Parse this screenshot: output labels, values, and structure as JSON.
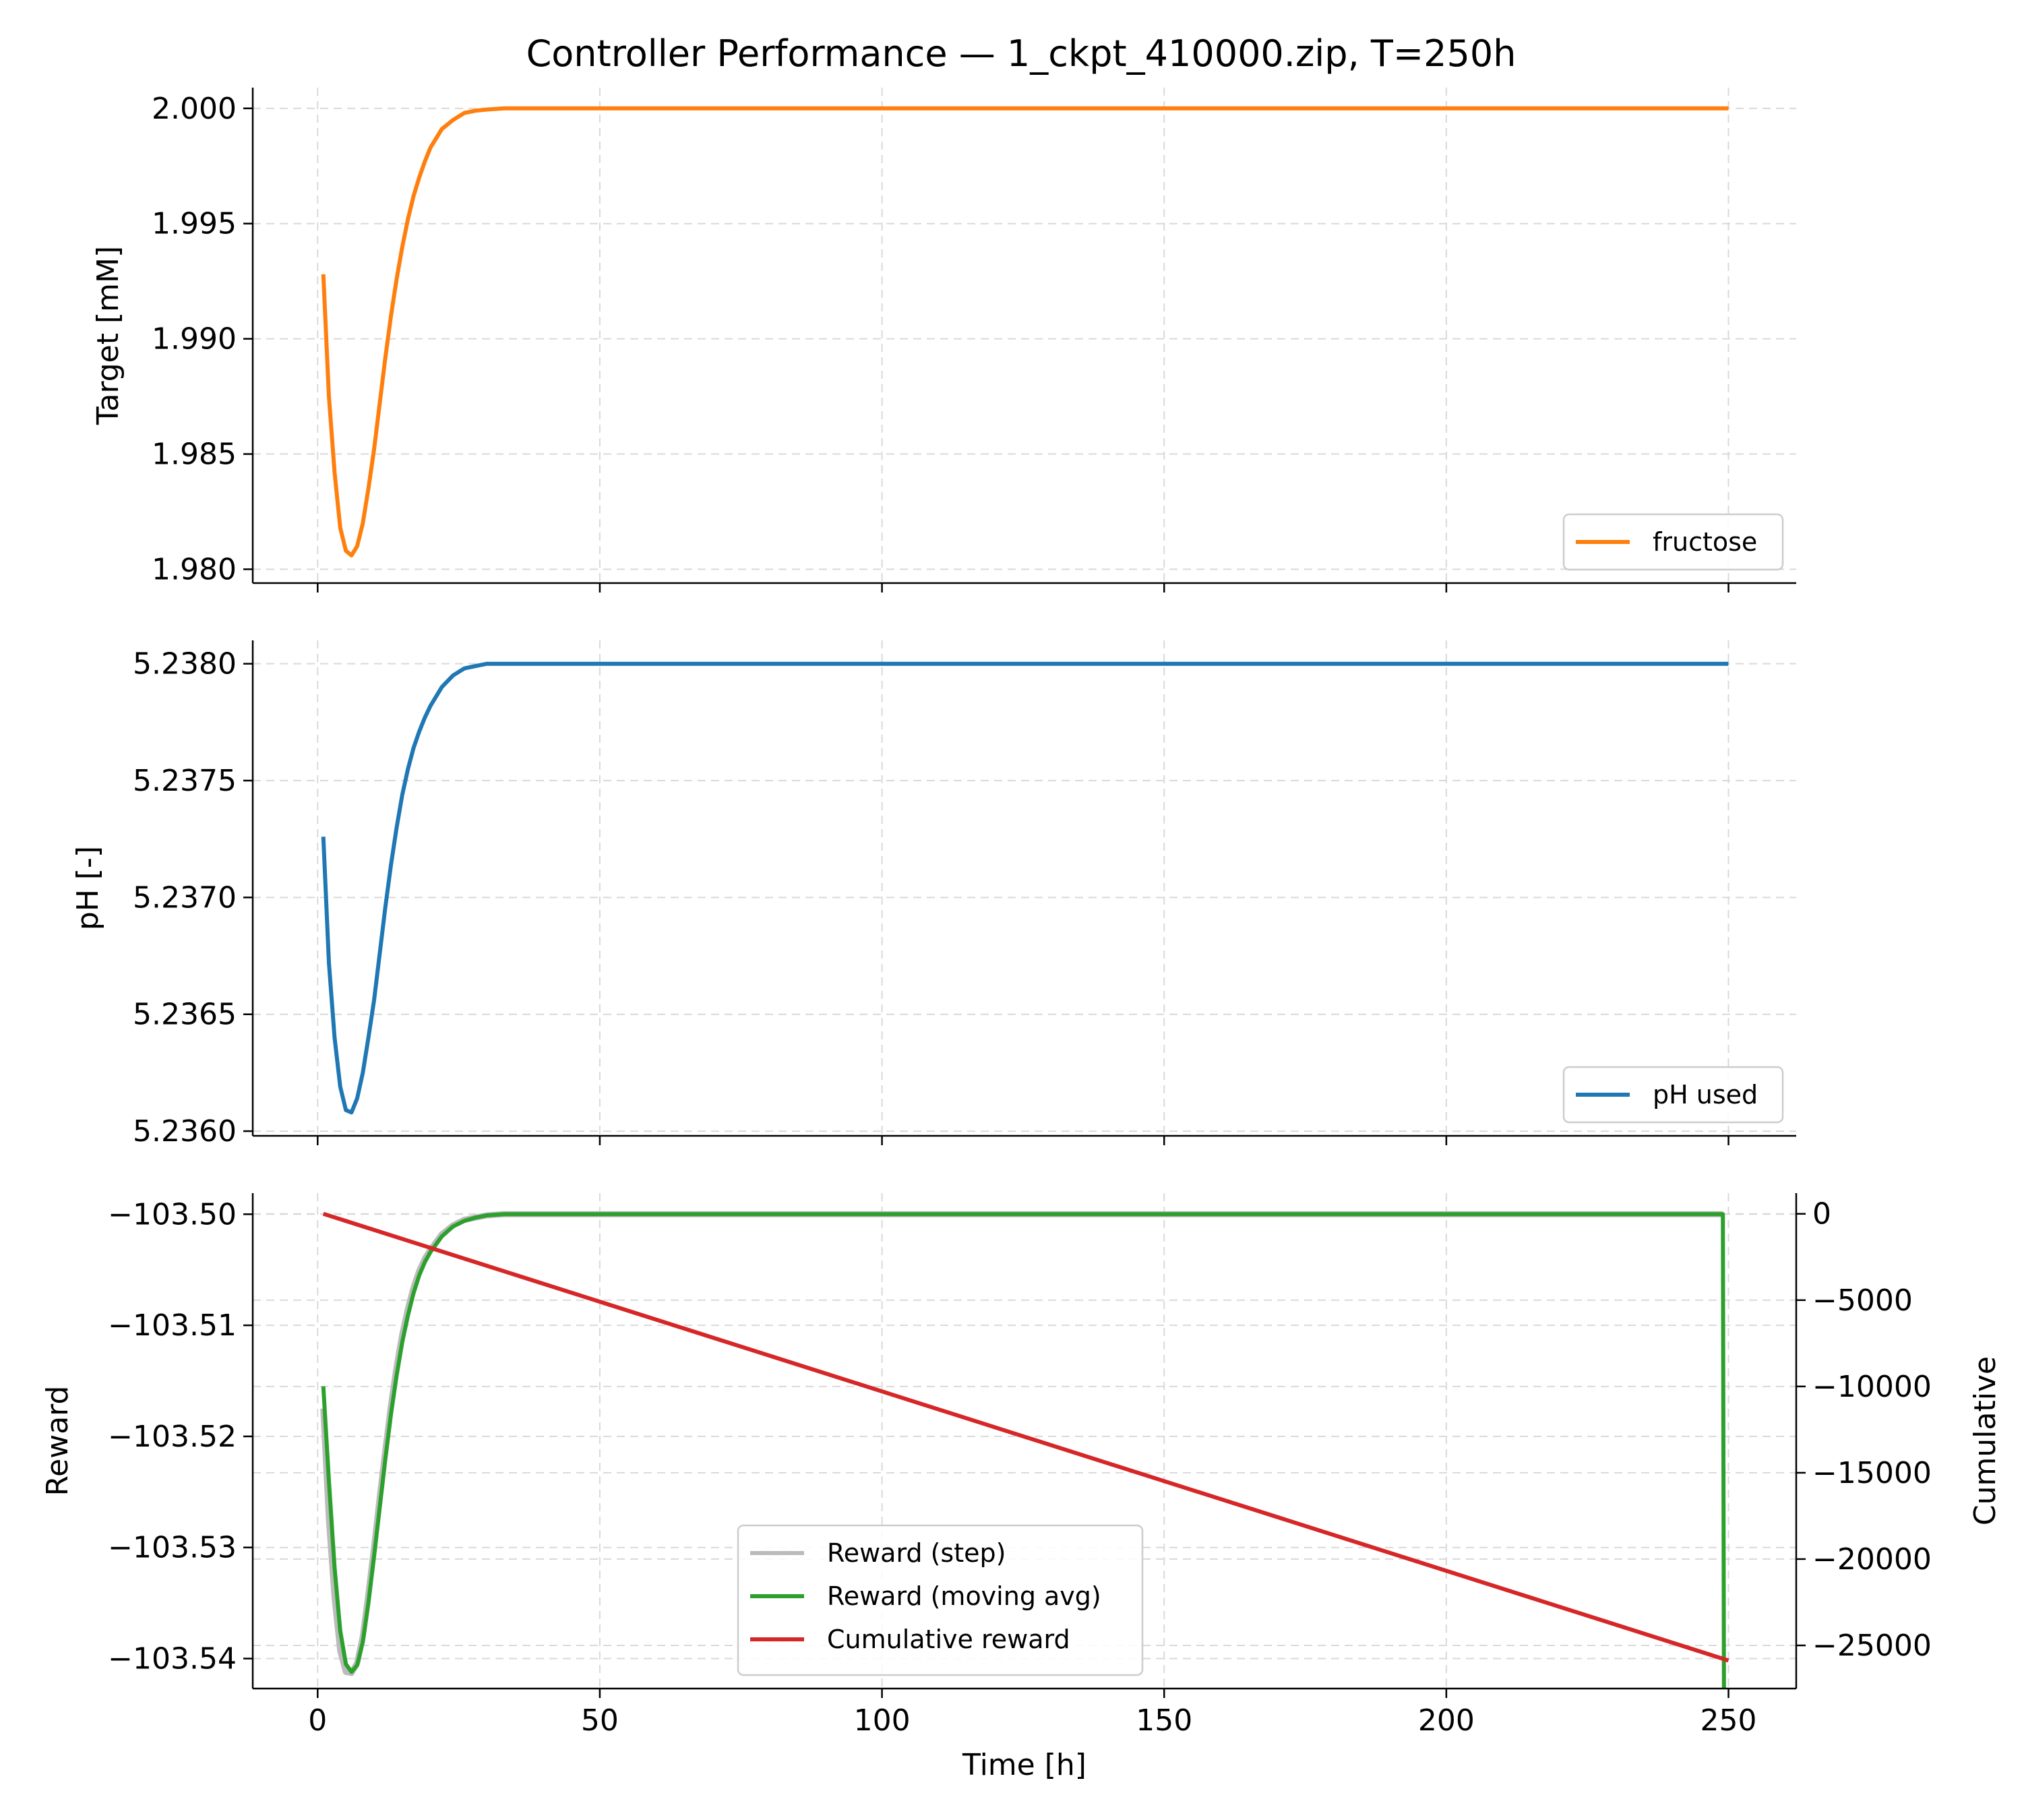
{
  "title": "Controller Performance — 1_ckpt_410000.zip, T=250h",
  "colors": {
    "fructose": "#ff7f0e",
    "ph": "#1f77b4",
    "reward_step": "#bbbbbb",
    "reward_ma": "#2ca02c",
    "cumulative": "#d62728"
  },
  "chart_data": [
    {
      "type": "line",
      "xlim": [
        -11.5,
        262
      ],
      "ylim": [
        1.9794,
        2.0009
      ],
      "xlabel": "",
      "ylabel": "Target [mM]",
      "xticks": [
        0,
        50,
        100,
        150,
        200,
        250
      ],
      "yticks": [
        1.98,
        1.985,
        1.99,
        1.995,
        2.0
      ],
      "ytick_labels": [
        "1.980",
        "1.985",
        "1.990",
        "1.995",
        "2.000"
      ],
      "grid": true,
      "legend_position": "lower right",
      "series": [
        {
          "name": "fructose",
          "x": [
            1,
            2,
            3,
            4,
            5,
            6,
            7,
            8,
            9,
            10,
            11,
            12,
            13,
            14,
            15,
            16,
            17,
            18,
            19,
            20,
            22,
            24,
            26,
            28,
            30,
            33,
            36,
            40,
            45,
            50,
            100,
            150,
            200,
            250
          ],
          "y": [
            1.9928,
            1.9875,
            1.9842,
            1.9818,
            1.9808,
            1.9806,
            1.981,
            1.982,
            1.9835,
            1.9852,
            1.9872,
            1.9892,
            1.991,
            1.9926,
            1.994,
            1.9952,
            1.9962,
            1.997,
            1.9977,
            1.9983,
            1.9991,
            1.9995,
            1.9998,
            1.9999,
            1.99995,
            2.0,
            2.0,
            2.0,
            2.0,
            2.0,
            2.0,
            2.0,
            2.0,
            2.0
          ]
        }
      ]
    },
    {
      "type": "line",
      "xlim": [
        -11.5,
        262
      ],
      "ylim": [
        5.23598,
        5.2381
      ],
      "xlabel": "",
      "ylabel": "pH [-]",
      "xticks": [
        0,
        50,
        100,
        150,
        200,
        250
      ],
      "yticks": [
        5.236,
        5.2365,
        5.237,
        5.2375,
        5.238
      ],
      "ytick_labels": [
        "5.2360",
        "5.2365",
        "5.2370",
        "5.2375",
        "5.2380"
      ],
      "grid": true,
      "legend_position": "lower right",
      "series": [
        {
          "name": "pH used",
          "x": [
            1,
            2,
            3,
            4,
            5,
            6,
            7,
            8,
            9,
            10,
            11,
            12,
            13,
            14,
            15,
            16,
            17,
            18,
            19,
            20,
            22,
            24,
            26,
            28,
            30,
            33,
            36,
            40,
            45,
            50,
            100,
            150,
            200,
            250
          ],
          "y": [
            5.23726,
            5.23672,
            5.2364,
            5.23619,
            5.23609,
            5.23608,
            5.23614,
            5.23625,
            5.2364,
            5.23656,
            5.23676,
            5.23696,
            5.23714,
            5.2373,
            5.23744,
            5.23755,
            5.23764,
            5.23771,
            5.23777,
            5.23782,
            5.2379,
            5.23795,
            5.23798,
            5.23799,
            5.238,
            5.238,
            5.238,
            5.238,
            5.238,
            5.238,
            5.238,
            5.238,
            5.238,
            5.238
          ]
        }
      ]
    },
    {
      "type": "line",
      "xlim": [
        -11.5,
        262
      ],
      "ylim": [
        -103.5427,
        -103.4981
      ],
      "y2lim": [
        -27500,
        1200
      ],
      "xlabel": "Time [h]",
      "ylabel": "Reward",
      "y2label": "Cumulative",
      "xticks": [
        0,
        50,
        100,
        150,
        200,
        250
      ],
      "yticks": [
        -103.54,
        -103.53,
        -103.52,
        -103.51,
        -103.5
      ],
      "ytick_labels": [
        "−103.54",
        "−103.53",
        "−103.52",
        "−103.51",
        "−103.50"
      ],
      "y2ticks": [
        0,
        -5000,
        -10000,
        -15000,
        -20000,
        -25000
      ],
      "y2tick_labels": [
        "0",
        "−5000",
        "−10000",
        "−15000",
        "−20000",
        "−25000"
      ],
      "grid": true,
      "legend_position": "lower center",
      "series": [
        {
          "name": "Reward (step)",
          "axis": "left",
          "x": [
            1,
            2,
            3,
            4,
            5,
            6,
            7,
            8,
            9,
            10,
            11,
            12,
            13,
            14,
            15,
            16,
            17,
            18,
            19,
            20,
            22,
            24,
            26,
            28,
            30,
            33,
            36,
            40,
            45,
            50,
            100,
            150,
            200,
            249
          ],
          "y": [
            -103.5175,
            -103.5275,
            -103.5345,
            -103.5393,
            -103.5412,
            -103.5413,
            -103.5404,
            -103.538,
            -103.5342,
            -103.53,
            -103.5255,
            -103.5212,
            -103.5172,
            -103.5137,
            -103.5108,
            -103.5085,
            -103.5066,
            -103.5051,
            -103.504,
            -103.5032,
            -103.5018,
            -103.501,
            -103.5005,
            -103.5003,
            -103.5001,
            -103.5,
            -103.5,
            -103.5,
            -103.5,
            -103.5,
            -103.5,
            -103.5,
            -103.5,
            -103.5
          ]
        },
        {
          "name": "Reward (moving avg)",
          "axis": "left",
          "x": [
            1,
            2,
            3,
            4,
            5,
            6,
            7,
            8,
            9,
            10,
            11,
            12,
            13,
            14,
            15,
            16,
            17,
            18,
            19,
            20,
            22,
            24,
            26,
            28,
            30,
            33,
            36,
            40,
            45,
            50,
            100,
            150,
            200,
            249,
            249.2
          ],
          "y": [
            -103.5155,
            -103.524,
            -103.5318,
            -103.5375,
            -103.5405,
            -103.5412,
            -103.5406,
            -103.5385,
            -103.535,
            -103.5308,
            -103.5264,
            -103.522,
            -103.518,
            -103.5145,
            -103.5115,
            -103.5091,
            -103.5071,
            -103.5055,
            -103.5043,
            -103.5034,
            -103.502,
            -103.5011,
            -103.5006,
            -103.5003,
            -103.5001,
            -103.5,
            -103.5,
            -103.5,
            -103.5,
            -103.5,
            -103.5,
            -103.5,
            -103.5,
            -103.5,
            -103.5427
          ]
        },
        {
          "name": "Cumulative reward",
          "axis": "right",
          "x": [
            1,
            250
          ],
          "y": [
            0,
            -25875
          ]
        }
      ]
    }
  ]
}
